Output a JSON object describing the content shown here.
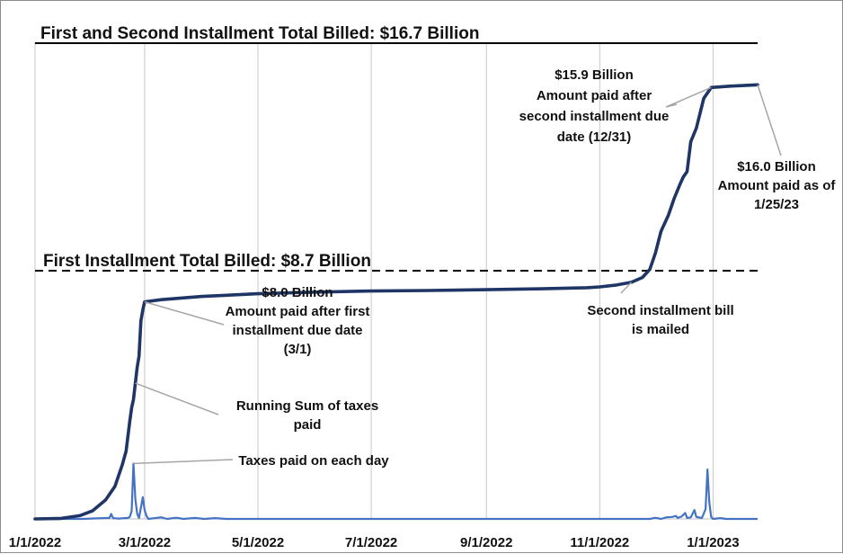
{
  "chart_data": {
    "type": "line",
    "x_axis": {
      "tick_labels": [
        "1/1/2022",
        "3/1/2022",
        "5/1/2022",
        "7/1/2022",
        "9/1/2022",
        "11/1/2022",
        "1/1/2023"
      ],
      "range": [
        "2022-01-01",
        "2023-01-25"
      ]
    },
    "y_range_billions": [
      0,
      17.5
    ],
    "grid": "vertical gridlines at x tick dates",
    "series": [
      {
        "name": "Running Sum of taxes paid",
        "color": "#1f3566",
        "unit": "billion dollars (cumulative)",
        "points": [
          [
            "2022-01-01",
            0
          ],
          [
            "2022-01-15",
            0.02
          ],
          [
            "2022-01-25",
            0.12
          ],
          [
            "2022-02-01",
            0.3
          ],
          [
            "2022-02-08",
            0.7
          ],
          [
            "2022-02-13",
            1.2
          ],
          [
            "2022-02-17",
            2.0
          ],
          [
            "2022-02-19",
            2.5
          ],
          [
            "2022-02-21",
            3.6
          ],
          [
            "2022-02-22",
            4.1
          ],
          [
            "2022-02-23",
            4.4
          ],
          [
            "2022-02-24",
            5.0
          ],
          [
            "2022-02-25",
            5.6
          ],
          [
            "2022-02-26",
            6.0
          ],
          [
            "2022-02-27",
            7.3
          ],
          [
            "2022-02-28",
            7.7
          ],
          [
            "2022-03-01",
            8.0
          ],
          [
            "2022-03-10",
            8.08
          ],
          [
            "2022-04-01",
            8.2
          ],
          [
            "2022-05-01",
            8.3
          ],
          [
            "2022-06-01",
            8.36
          ],
          [
            "2022-07-01",
            8.4
          ],
          [
            "2022-08-01",
            8.42
          ],
          [
            "2022-09-01",
            8.45
          ],
          [
            "2022-10-01",
            8.48
          ],
          [
            "2022-10-25",
            8.52
          ],
          [
            "2022-11-01",
            8.55
          ],
          [
            "2022-11-10",
            8.62
          ],
          [
            "2022-11-18",
            8.72
          ],
          [
            "2022-11-24",
            8.9
          ],
          [
            "2022-11-28",
            9.2
          ],
          [
            "2022-12-01",
            9.8
          ],
          [
            "2022-12-04",
            10.6
          ],
          [
            "2022-12-08",
            11.2
          ],
          [
            "2022-12-11",
            11.8
          ],
          [
            "2022-12-14",
            12.3
          ],
          [
            "2022-12-16",
            12.6
          ],
          [
            "2022-12-18",
            12.8
          ],
          [
            "2022-12-20",
            13.9
          ],
          [
            "2022-12-23",
            14.4
          ],
          [
            "2022-12-27",
            15.5
          ],
          [
            "2022-12-30",
            15.8
          ],
          [
            "2022-12-31",
            15.9
          ],
          [
            "2023-01-10",
            15.95
          ],
          [
            "2023-01-25",
            16.0
          ]
        ]
      },
      {
        "name": "Taxes paid on each day",
        "color": "#4472c4",
        "unit": "billion dollars per day",
        "points": [
          [
            "2022-01-01",
            0
          ],
          [
            "2022-01-26",
            0
          ],
          [
            "2022-02-10",
            0.05
          ],
          [
            "2022-02-11",
            0.25
          ],
          [
            "2022-02-12",
            0.04
          ],
          [
            "2022-02-15",
            0.02
          ],
          [
            "2022-02-20",
            0.05
          ],
          [
            "2022-02-21",
            0.1
          ],
          [
            "2022-02-22",
            0.4
          ],
          [
            "2022-02-23",
            2.8
          ],
          [
            "2022-02-24",
            1.0
          ],
          [
            "2022-02-25",
            0.25
          ],
          [
            "2022-02-26",
            0.05
          ],
          [
            "2022-02-28",
            1.1
          ],
          [
            "2022-03-01",
            0.45
          ],
          [
            "2022-03-02",
            0.15
          ],
          [
            "2022-03-03",
            0.0
          ],
          [
            "2022-03-10",
            0.08
          ],
          [
            "2022-03-13",
            0
          ],
          [
            "2022-03-18",
            0.06
          ],
          [
            "2022-03-22",
            0
          ],
          [
            "2022-03-28",
            0.05
          ],
          [
            "2022-04-02",
            0
          ],
          [
            "2022-04-08",
            0.04
          ],
          [
            "2022-04-14",
            0
          ],
          [
            "2022-11-28",
            0
          ],
          [
            "2022-12-01",
            0.06
          ],
          [
            "2022-12-04",
            0
          ],
          [
            "2022-12-07",
            0.08
          ],
          [
            "2022-12-10",
            0.1
          ],
          [
            "2022-12-12",
            0.15
          ],
          [
            "2022-12-13",
            0.05
          ],
          [
            "2022-12-15",
            0.12
          ],
          [
            "2022-12-17",
            0.3
          ],
          [
            "2022-12-18",
            0.05
          ],
          [
            "2022-12-20",
            0.08
          ],
          [
            "2022-12-22",
            0.45
          ],
          [
            "2022-12-23",
            0.1
          ],
          [
            "2022-12-26",
            0.05
          ],
          [
            "2022-12-28",
            0.5
          ],
          [
            "2022-12-29",
            2.5
          ],
          [
            "2022-12-30",
            0.8
          ],
          [
            "2022-12-31",
            0.1
          ],
          [
            "2023-01-01",
            0
          ],
          [
            "2023-01-05",
            0.04
          ],
          [
            "2023-01-08",
            0
          ],
          [
            "2023-01-25",
            0
          ]
        ]
      }
    ],
    "reference_lines": [
      {
        "label": "First and Second Installment Total Billed: $16.7 Billion",
        "value": 16.7,
        "style": "solid"
      },
      {
        "label": "First Installment Total Billed: $8.7 Billion",
        "value": 8.7,
        "style": "dashed"
      }
    ],
    "annotations": [
      {
        "lines": [
          "$8.0 Billion",
          "Amount paid after first",
          "installment due date",
          "(3/1)"
        ],
        "point": [
          "2022-03-01",
          8.0
        ]
      },
      {
        "lines": [
          "Running Sum of taxes",
          "paid"
        ],
        "point": [
          "2022-02-24",
          5.0
        ]
      },
      {
        "lines": [
          "Taxes paid on each day"
        ],
        "point": [
          "2022-02-23",
          2.8
        ],
        "series": "daily"
      },
      {
        "lines": [
          "Second installment bill",
          "is mailed"
        ],
        "point": [
          "2022-11-18",
          8.72
        ]
      },
      {
        "lines": [
          "$15.9 Billion",
          "Amount paid after",
          "second installment due",
          "date (12/31)"
        ],
        "point": [
          "2022-12-31",
          15.9
        ]
      },
      {
        "lines": [
          "$16.0 Billion",
          "Amount paid as of",
          "1/25/23"
        ],
        "point": [
          "2023-01-25",
          16.0
        ]
      }
    ],
    "colors": {
      "cumulative": "#1f3566",
      "daily": "#4472c4",
      "grid": "#c8c8c8",
      "leader": "#a6a6a6"
    }
  }
}
